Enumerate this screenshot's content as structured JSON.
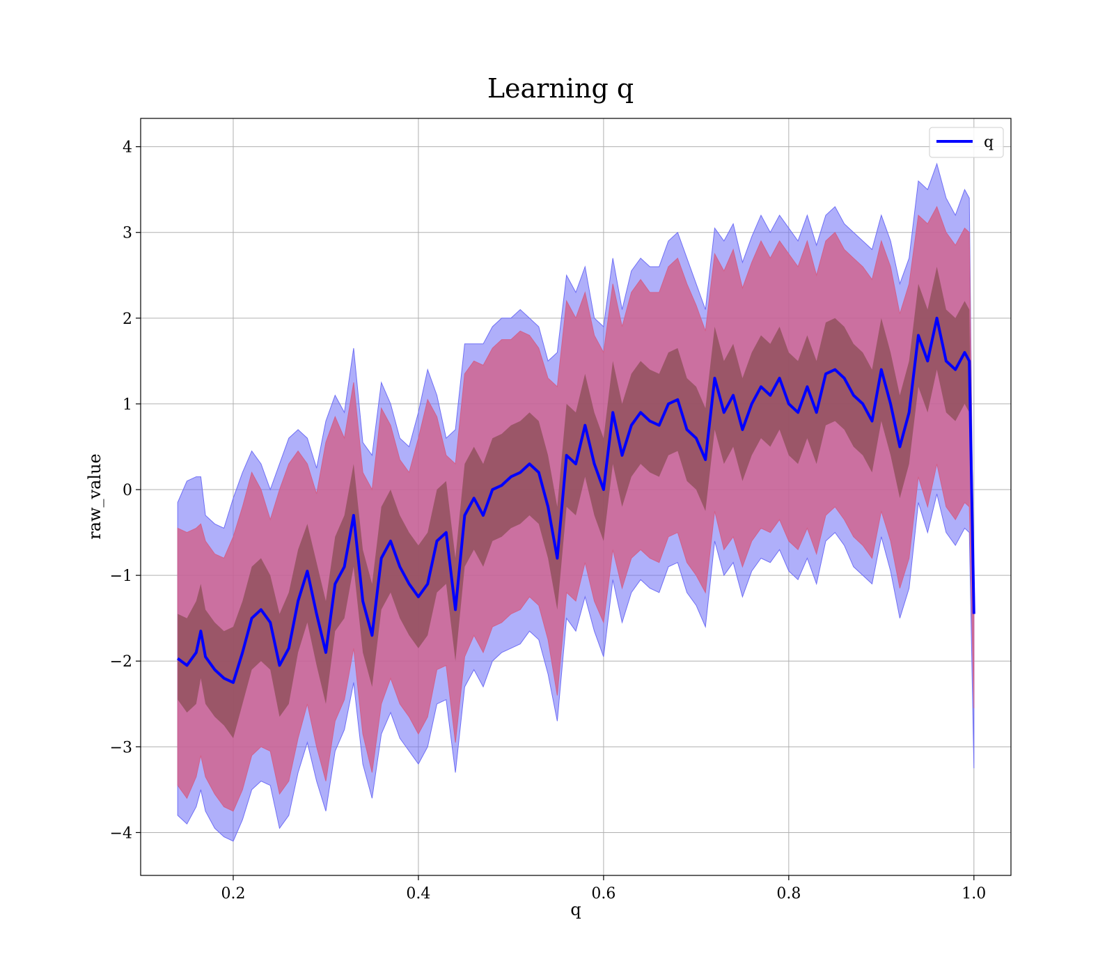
{
  "chart_data": {
    "type": "line",
    "title": "Learning q",
    "xlabel": "q",
    "ylabel": "raw_value",
    "xlim": [
      0.1,
      1.04
    ],
    "ylim": [
      -4.5,
      4.33
    ],
    "xticks": [
      0.2,
      0.4,
      0.6,
      0.8,
      1.0
    ],
    "xtick_labels": [
      "0.2",
      "0.4",
      "0.6",
      "0.8",
      "1.0"
    ],
    "yticks": [
      -4,
      -3,
      -2,
      -1,
      0,
      1,
      2,
      3,
      4
    ],
    "ytick_labels": [
      "−4",
      "−3",
      "−2",
      "−1",
      "0",
      "1",
      "2",
      "3",
      "4"
    ],
    "grid": true,
    "legend": {
      "position": "upper right",
      "entries": [
        "q"
      ]
    },
    "colors": {
      "line": "#0000ff",
      "band_outer": "#6e6ef5",
      "band_middle": "#d2608a",
      "band_inner": "#8b4e56"
    },
    "series": [
      {
        "name": "q",
        "x": [
          0.14,
          0.15,
          0.16,
          0.165,
          0.17,
          0.18,
          0.19,
          0.2,
          0.21,
          0.22,
          0.23,
          0.24,
          0.25,
          0.26,
          0.27,
          0.28,
          0.29,
          0.3,
          0.31,
          0.32,
          0.33,
          0.34,
          0.35,
          0.36,
          0.37,
          0.38,
          0.39,
          0.4,
          0.41,
          0.42,
          0.43,
          0.44,
          0.45,
          0.46,
          0.47,
          0.48,
          0.49,
          0.5,
          0.51,
          0.52,
          0.53,
          0.54,
          0.55,
          0.56,
          0.57,
          0.58,
          0.59,
          0.6,
          0.61,
          0.62,
          0.63,
          0.64,
          0.65,
          0.66,
          0.67,
          0.68,
          0.69,
          0.7,
          0.71,
          0.72,
          0.73,
          0.74,
          0.75,
          0.76,
          0.77,
          0.78,
          0.79,
          0.8,
          0.81,
          0.82,
          0.83,
          0.84,
          0.85,
          0.86,
          0.87,
          0.88,
          0.89,
          0.9,
          0.91,
          0.92,
          0.93,
          0.94,
          0.95,
          0.96,
          0.97,
          0.98,
          0.99,
          0.995,
          1.0
        ],
        "values": [
          -1.97,
          -2.05,
          -1.9,
          -1.65,
          -1.95,
          -2.1,
          -2.2,
          -2.25,
          -1.9,
          -1.5,
          -1.4,
          -1.55,
          -2.05,
          -1.85,
          -1.3,
          -0.95,
          -1.45,
          -1.9,
          -1.1,
          -0.9,
          -0.3,
          -1.3,
          -1.7,
          -0.8,
          -0.6,
          -0.9,
          -1.1,
          -1.25,
          -1.1,
          -0.6,
          -0.5,
          -1.4,
          -0.3,
          -0.1,
          -0.3,
          0.0,
          0.05,
          0.15,
          0.2,
          0.3,
          0.2,
          -0.2,
          -0.8,
          0.4,
          0.3,
          0.75,
          0.3,
          0.0,
          0.9,
          0.4,
          0.75,
          0.9,
          0.8,
          0.75,
          1.0,
          1.05,
          0.7,
          0.6,
          0.35,
          1.3,
          0.9,
          1.1,
          0.7,
          1.0,
          1.2,
          1.1,
          1.3,
          1.0,
          0.9,
          1.2,
          0.9,
          1.35,
          1.4,
          1.3,
          1.1,
          1.0,
          0.8,
          1.4,
          1.0,
          0.5,
          0.9,
          1.8,
          1.5,
          2.0,
          1.5,
          1.4,
          1.6,
          1.5,
          -1.45
        ],
        "band_outer_upper": [
          -0.15,
          0.1,
          0.15,
          0.15,
          -0.3,
          -0.4,
          -0.45,
          -0.1,
          0.2,
          0.45,
          0.3,
          0.0,
          0.3,
          0.6,
          0.7,
          0.6,
          0.25,
          0.8,
          1.1,
          0.9,
          1.65,
          0.55,
          0.4,
          1.25,
          1.0,
          0.6,
          0.5,
          0.9,
          1.4,
          1.1,
          0.6,
          0.7,
          1.7,
          1.7,
          1.7,
          1.9,
          2.0,
          2.0,
          2.1,
          2.0,
          1.9,
          1.5,
          1.6,
          2.5,
          2.3,
          2.6,
          2.0,
          1.9,
          2.7,
          2.1,
          2.55,
          2.7,
          2.6,
          2.6,
          2.9,
          3.0,
          2.7,
          2.4,
          2.1,
          3.05,
          2.9,
          3.1,
          2.65,
          2.95,
          3.2,
          3.0,
          3.2,
          3.05,
          2.9,
          3.2,
          2.85,
          3.2,
          3.3,
          3.1,
          3.0,
          2.9,
          2.8,
          3.2,
          2.9,
          2.4,
          2.7,
          3.6,
          3.5,
          3.8,
          3.4,
          3.2,
          3.5,
          3.4,
          -1.45
        ],
        "band_middle_upper": [
          -0.45,
          -0.5,
          -0.45,
          -0.4,
          -0.6,
          -0.75,
          -0.8,
          -0.55,
          -0.2,
          0.2,
          0.0,
          -0.35,
          0.0,
          0.3,
          0.45,
          0.3,
          -0.05,
          0.55,
          0.85,
          0.6,
          1.25,
          0.2,
          0.0,
          0.95,
          0.75,
          0.35,
          0.2,
          0.6,
          1.05,
          0.85,
          0.4,
          0.3,
          1.35,
          1.5,
          1.45,
          1.65,
          1.75,
          1.75,
          1.85,
          1.8,
          1.65,
          1.3,
          1.2,
          2.2,
          2.0,
          2.3,
          1.8,
          1.6,
          2.4,
          1.9,
          2.3,
          2.45,
          2.3,
          2.3,
          2.6,
          2.7,
          2.4,
          2.15,
          1.85,
          2.75,
          2.55,
          2.8,
          2.35,
          2.65,
          2.9,
          2.7,
          2.9,
          2.75,
          2.6,
          2.9,
          2.5,
          2.9,
          3.0,
          2.8,
          2.7,
          2.6,
          2.45,
          2.9,
          2.6,
          2.05,
          2.4,
          3.2,
          3.1,
          3.3,
          3.0,
          2.85,
          3.05,
          3.0,
          -1.45
        ],
        "band_inner_upper": [
          -1.45,
          -1.5,
          -1.3,
          -1.1,
          -1.4,
          -1.55,
          -1.65,
          -1.6,
          -1.3,
          -0.9,
          -0.8,
          -1.0,
          -1.45,
          -1.2,
          -0.7,
          -0.4,
          -0.85,
          -1.3,
          -0.55,
          -0.3,
          0.3,
          -0.7,
          -1.1,
          -0.2,
          0.0,
          -0.3,
          -0.5,
          -0.65,
          -0.5,
          0.0,
          0.1,
          -0.8,
          0.3,
          0.5,
          0.3,
          0.6,
          0.65,
          0.75,
          0.8,
          0.9,
          0.8,
          0.4,
          -0.2,
          1.0,
          0.9,
          1.35,
          0.9,
          0.6,
          1.5,
          1.0,
          1.35,
          1.5,
          1.4,
          1.35,
          1.6,
          1.65,
          1.3,
          1.2,
          0.95,
          1.9,
          1.5,
          1.7,
          1.3,
          1.6,
          1.8,
          1.7,
          1.9,
          1.6,
          1.5,
          1.8,
          1.5,
          1.95,
          2.0,
          1.9,
          1.7,
          1.6,
          1.4,
          2.0,
          1.6,
          1.1,
          1.5,
          2.4,
          2.1,
          2.6,
          2.1,
          2.0,
          2.2,
          2.1,
          -1.45
        ],
        "band_inner_lower": [
          -2.45,
          -2.6,
          -2.5,
          -2.2,
          -2.5,
          -2.65,
          -2.75,
          -2.9,
          -2.5,
          -2.1,
          -2.0,
          -2.1,
          -2.65,
          -2.5,
          -1.9,
          -1.55,
          -2.05,
          -2.5,
          -1.65,
          -1.5,
          -0.9,
          -1.9,
          -2.3,
          -1.4,
          -1.2,
          -1.5,
          -1.7,
          -1.85,
          -1.7,
          -1.2,
          -1.1,
          -2.0,
          -0.9,
          -0.7,
          -0.9,
          -0.6,
          -0.55,
          -0.45,
          -0.4,
          -0.3,
          -0.4,
          -0.8,
          -1.4,
          -0.2,
          -0.3,
          0.15,
          -0.3,
          -0.6,
          0.3,
          -0.2,
          0.15,
          0.3,
          0.2,
          0.15,
          0.4,
          0.45,
          0.1,
          0.0,
          -0.25,
          0.7,
          0.3,
          0.5,
          0.1,
          0.4,
          0.6,
          0.5,
          0.7,
          0.4,
          0.3,
          0.6,
          0.3,
          0.75,
          0.8,
          0.7,
          0.5,
          0.4,
          0.2,
          0.8,
          0.4,
          -0.1,
          0.3,
          1.2,
          0.9,
          1.4,
          0.9,
          0.8,
          1.0,
          0.9,
          -1.45
        ],
        "band_middle_lower": [
          -3.45,
          -3.6,
          -3.35,
          -3.1,
          -3.35,
          -3.55,
          -3.7,
          -3.75,
          -3.5,
          -3.1,
          -3.0,
          -3.05,
          -3.55,
          -3.4,
          -2.9,
          -2.5,
          -3.0,
          -3.4,
          -2.7,
          -2.45,
          -1.85,
          -2.85,
          -3.3,
          -2.5,
          -2.2,
          -2.5,
          -2.65,
          -2.85,
          -2.65,
          -2.1,
          -2.05,
          -2.95,
          -1.95,
          -1.7,
          -1.9,
          -1.6,
          -1.55,
          -1.45,
          -1.4,
          -1.25,
          -1.35,
          -1.75,
          -2.4,
          -1.2,
          -1.3,
          -0.85,
          -1.3,
          -1.55,
          -0.7,
          -1.15,
          -0.8,
          -0.7,
          -0.8,
          -0.85,
          -0.55,
          -0.5,
          -0.85,
          -1.0,
          -1.2,
          -0.25,
          -0.7,
          -0.55,
          -0.9,
          -0.6,
          -0.45,
          -0.5,
          -0.35,
          -0.6,
          -0.7,
          -0.45,
          -0.75,
          -0.3,
          -0.2,
          -0.35,
          -0.55,
          -0.65,
          -0.8,
          -0.25,
          -0.6,
          -1.15,
          -0.8,
          0.15,
          -0.2,
          0.3,
          -0.2,
          -0.35,
          -0.15,
          -0.2,
          -2.55
        ],
        "band_outer_lower": [
          -3.8,
          -3.9,
          -3.7,
          -3.5,
          -3.75,
          -3.95,
          -4.05,
          -4.1,
          -3.85,
          -3.5,
          -3.4,
          -3.45,
          -3.95,
          -3.8,
          -3.3,
          -2.95,
          -3.4,
          -3.75,
          -3.05,
          -2.8,
          -2.25,
          -3.2,
          -3.6,
          -2.85,
          -2.6,
          -2.9,
          -3.05,
          -3.2,
          -3.0,
          -2.5,
          -2.45,
          -3.3,
          -2.3,
          -2.1,
          -2.3,
          -2.0,
          -1.9,
          -1.85,
          -1.8,
          -1.65,
          -1.75,
          -2.15,
          -2.7,
          -1.5,
          -1.65,
          -1.25,
          -1.65,
          -1.95,
          -1.05,
          -1.55,
          -1.2,
          -1.05,
          -1.15,
          -1.2,
          -0.9,
          -0.85,
          -1.2,
          -1.35,
          -1.6,
          -0.6,
          -1.0,
          -0.85,
          -1.25,
          -0.95,
          -0.8,
          -0.85,
          -0.7,
          -0.95,
          -1.05,
          -0.8,
          -1.1,
          -0.6,
          -0.5,
          -0.65,
          -0.9,
          -1.0,
          -1.1,
          -0.55,
          -0.95,
          -1.5,
          -1.15,
          -0.15,
          -0.5,
          -0.05,
          -0.5,
          -0.65,
          -0.45,
          -0.5,
          -3.25
        ]
      }
    ]
  }
}
